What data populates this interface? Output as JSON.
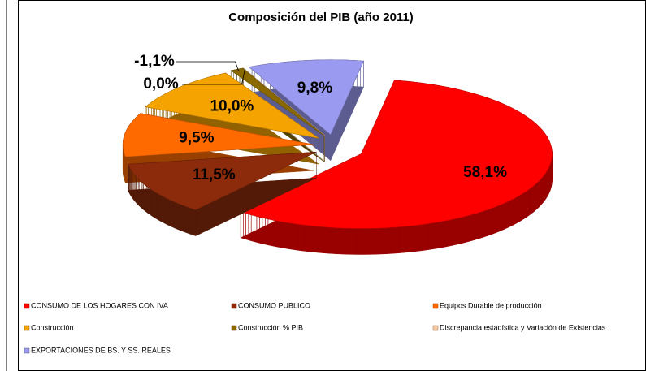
{
  "chart_data": {
    "type": "pie3d",
    "title": "Composición del PIB (año 2011)",
    "categories": [
      "CONSUMO DE LOS HOGARES CON IVA",
      "CONSUMO PUBLICO",
      "Equipos Durable de producción",
      "Construcción",
      "Construcción  % PIB",
      "Discrepancia estadística y Variación de Existencias",
      "EXPORTACIONES DE BS. Y SS. REALES"
    ],
    "values": [
      58.1,
      11.5,
      9.5,
      10.0,
      -1.1,
      0.0,
      9.8
    ],
    "value_labels": [
      "58,1%",
      "11,5%",
      "9,5%",
      "10,0%",
      "-1,1%",
      "0,0%",
      "9,8%"
    ],
    "colors": [
      "#ff0000",
      "#8b2b0b",
      "#ff6a00",
      "#f5a300",
      "#8a6a00",
      "#f7c9a0",
      "#9a9af0"
    ],
    "legend": "bottom"
  }
}
